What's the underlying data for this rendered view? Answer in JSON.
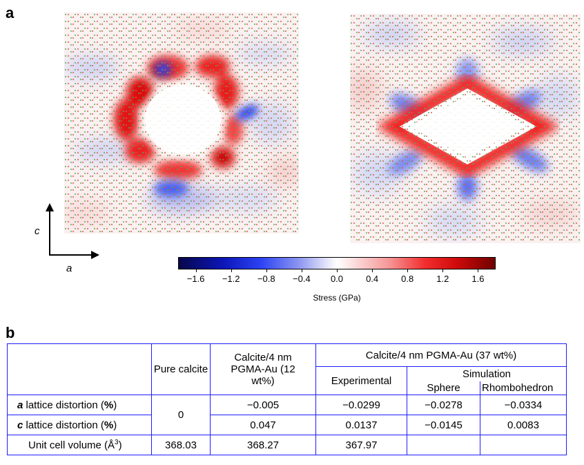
{
  "figure": {
    "panel_a_label": "a",
    "panel_b_label": "b",
    "axis_vertical_label": "c",
    "axis_horizontal_label": "a",
    "colorbar": {
      "title": "Stress (GPa)",
      "ticks": [
        "−1.6",
        "−1.2",
        "−0.8",
        "−0.4",
        "0.0",
        "0.4",
        "0.8",
        "1.2",
        "1.6"
      ],
      "min": -1.8,
      "max": 1.8
    },
    "maps": [
      {
        "name": "sphere-stress-map"
      },
      {
        "name": "rhombohedron-stress-map"
      }
    ]
  },
  "table": {
    "headers": {
      "pure_calcite": "Pure calcite",
      "calcite_12": "Calcite/4 nm PGMA-Au (12 wt%)",
      "calcite_37": "Calcite/4 nm PGMA-Au (37 wt%)",
      "experimental": "Experimental",
      "simulation": "Simulation",
      "sphere": "Sphere",
      "rhombohedron": "Rhombohedron"
    },
    "rows": {
      "a_lattice": {
        "letter": "a",
        "label": " lattice distortion (",
        "pct": "%",
        "close": ")",
        "pure": "0",
        "w12": "−0.005",
        "exp": "−0.0299",
        "sphere": "−0.0278",
        "rhombo": "−0.0334"
      },
      "c_lattice": {
        "letter": "c",
        "label": " lattice distortion (",
        "pct": "%",
        "close": ")",
        "w12": "0.047",
        "exp": "0.0137",
        "sphere": "−0.0145",
        "rhombo": "0.0083"
      },
      "unit_cell": {
        "label": "Unit cell volume (Å",
        "sup": "3",
        "close": ")",
        "pure": "368.03",
        "w12": "368.27",
        "exp": "367.97",
        "sphere": "",
        "rhombo": ""
      }
    }
  }
}
